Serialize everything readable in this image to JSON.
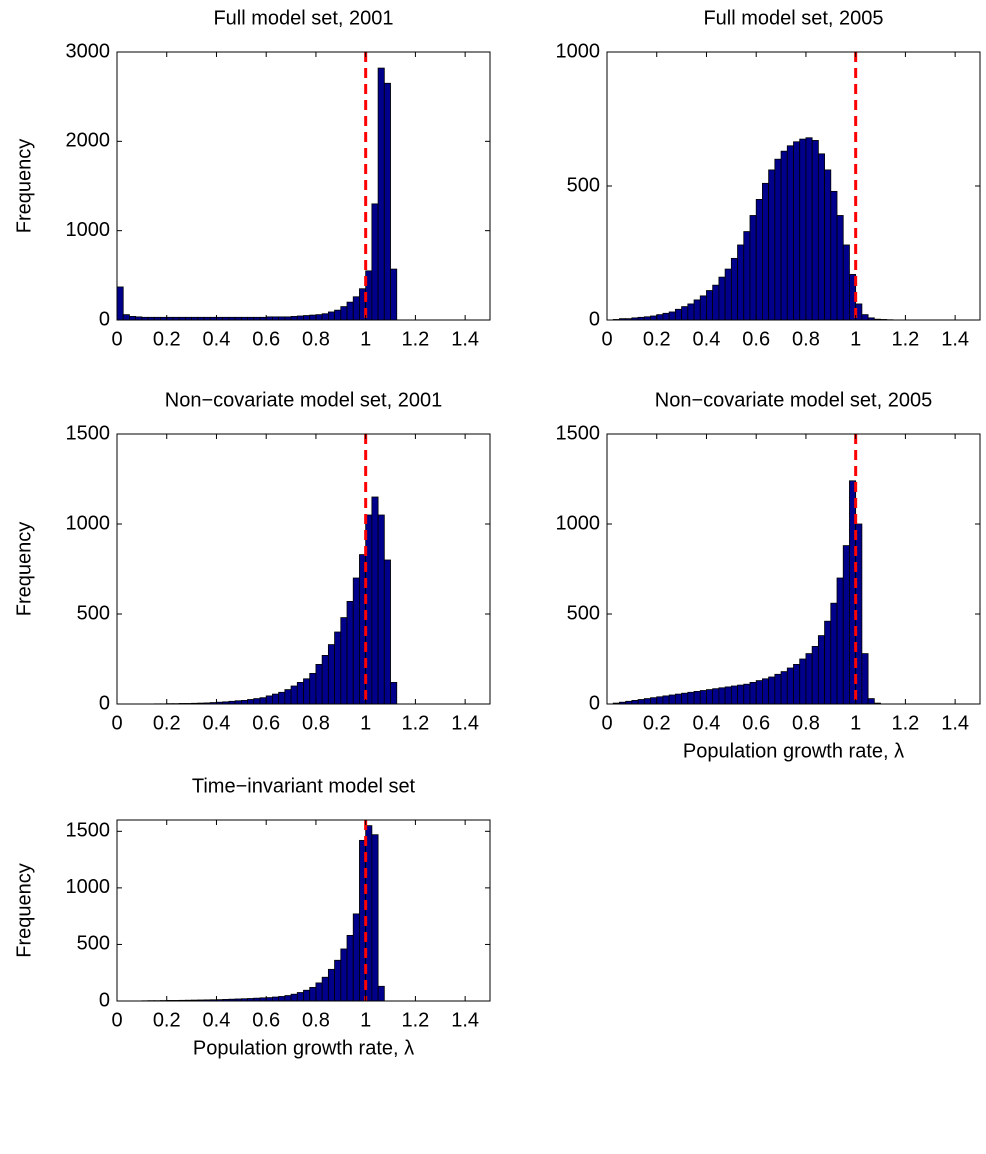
{
  "chart_data": [
    {
      "type": "histogram",
      "title": "Full model set, 2001",
      "ylabel": "Frequency",
      "bins": [
        0,
        0.025,
        0.05,
        0.075,
        0.1,
        0.125,
        0.15,
        0.175,
        0.2,
        0.225,
        0.25,
        0.275,
        0.3,
        0.325,
        0.35,
        0.375,
        0.4,
        0.425,
        0.45,
        0.475,
        0.5,
        0.525,
        0.55,
        0.575,
        0.6,
        0.625,
        0.65,
        0.675,
        0.7,
        0.725,
        0.75,
        0.775,
        0.8,
        0.825,
        0.85,
        0.875,
        0.9,
        0.925,
        0.95,
        0.975,
        1,
        1.025,
        1.05,
        1.075,
        1.1,
        1.125,
        1.15
      ],
      "counts": [
        370,
        60,
        40,
        35,
        30,
        30,
        30,
        30,
        30,
        30,
        30,
        30,
        30,
        30,
        30,
        30,
        30,
        30,
        30,
        30,
        30,
        30,
        30,
        30,
        35,
        35,
        35,
        35,
        40,
        45,
        50,
        55,
        60,
        70,
        90,
        110,
        150,
        200,
        260,
        350,
        550,
        1300,
        2820,
        2650,
        570,
        0
      ],
      "color": "#00008b",
      "xlim": [
        0,
        1.5
      ],
      "xticks": [
        0,
        0.2,
        0.4,
        0.6,
        0.8,
        1,
        1.2,
        1.4
      ],
      "ylim": [
        0,
        3000
      ],
      "yticks": [
        0,
        1000,
        2000,
        3000
      ],
      "vline": 1,
      "vline_color": "#ff0000"
    },
    {
      "type": "histogram",
      "title": "Full model set, 2005",
      "bins": [
        0,
        0.025,
        0.05,
        0.075,
        0.1,
        0.125,
        0.15,
        0.175,
        0.2,
        0.225,
        0.25,
        0.275,
        0.3,
        0.325,
        0.35,
        0.375,
        0.4,
        0.425,
        0.45,
        0.475,
        0.5,
        0.525,
        0.55,
        0.575,
        0.6,
        0.625,
        0.65,
        0.675,
        0.7,
        0.725,
        0.75,
        0.775,
        0.8,
        0.825,
        0.85,
        0.875,
        0.9,
        0.925,
        0.95,
        0.975,
        1,
        1.025,
        1.05,
        1.075,
        1.1,
        1.125,
        1.15
      ],
      "counts": [
        0,
        2,
        5,
        5,
        8,
        10,
        12,
        15,
        20,
        25,
        30,
        40,
        50,
        60,
        75,
        90,
        110,
        130,
        160,
        190,
        230,
        280,
        330,
        390,
        450,
        510,
        560,
        600,
        630,
        650,
        665,
        675,
        680,
        670,
        620,
        560,
        480,
        390,
        280,
        170,
        60,
        20,
        8,
        3,
        2,
        1
      ],
      "color": "#00008b",
      "xlim": [
        0,
        1.5
      ],
      "xticks": [
        0,
        0.2,
        0.4,
        0.6,
        0.8,
        1,
        1.2,
        1.4
      ],
      "ylim": [
        0,
        1000
      ],
      "yticks": [
        0,
        500,
        1000
      ],
      "vline": 1,
      "vline_color": "#ff0000"
    },
    {
      "type": "histogram",
      "title": "Non−covariate model set, 2001",
      "ylabel": "Frequency",
      "bins": [
        0,
        0.025,
        0.05,
        0.075,
        0.1,
        0.125,
        0.15,
        0.175,
        0.2,
        0.225,
        0.25,
        0.275,
        0.3,
        0.325,
        0.35,
        0.375,
        0.4,
        0.425,
        0.45,
        0.475,
        0.5,
        0.525,
        0.55,
        0.575,
        0.6,
        0.625,
        0.65,
        0.675,
        0.7,
        0.725,
        0.75,
        0.775,
        0.8,
        0.825,
        0.85,
        0.875,
        0.9,
        0.925,
        0.95,
        0.975,
        1,
        1.025,
        1.05,
        1.075,
        1.1,
        1.125,
        1.15
      ],
      "counts": [
        0,
        0,
        0,
        0,
        0,
        0,
        1,
        1,
        2,
        2,
        3,
        3,
        4,
        5,
        6,
        8,
        10,
        12,
        15,
        18,
        20,
        25,
        30,
        35,
        45,
        55,
        65,
        80,
        100,
        120,
        140,
        170,
        220,
        270,
        330,
        400,
        480,
        570,
        700,
        830,
        1050,
        1150,
        1050,
        800,
        120,
        0
      ],
      "color": "#00008b",
      "xlim": [
        0,
        1.5
      ],
      "xticks": [
        0,
        0.2,
        0.4,
        0.6,
        0.8,
        1,
        1.2,
        1.4
      ],
      "ylim": [
        0,
        1500
      ],
      "yticks": [
        0,
        500,
        1000,
        1500
      ],
      "vline": 1,
      "vline_color": "#ff0000"
    },
    {
      "type": "histogram",
      "title": "Non−covariate model set, 2005",
      "xlabel": "Population growth rate, λ",
      "bins": [
        0,
        0.025,
        0.05,
        0.075,
        0.1,
        0.125,
        0.15,
        0.175,
        0.2,
        0.225,
        0.25,
        0.275,
        0.3,
        0.325,
        0.35,
        0.375,
        0.4,
        0.425,
        0.45,
        0.475,
        0.5,
        0.525,
        0.55,
        0.575,
        0.6,
        0.625,
        0.65,
        0.675,
        0.7,
        0.725,
        0.75,
        0.775,
        0.8,
        0.825,
        0.85,
        0.875,
        0.9,
        0.925,
        0.95,
        0.975,
        1,
        1.025,
        1.05,
        1.075,
        1.1,
        1.125,
        1.15
      ],
      "counts": [
        0,
        5,
        10,
        15,
        20,
        25,
        30,
        35,
        40,
        45,
        50,
        55,
        60,
        65,
        70,
        75,
        80,
        85,
        90,
        95,
        100,
        105,
        110,
        120,
        130,
        140,
        150,
        165,
        180,
        200,
        220,
        250,
        280,
        320,
        380,
        460,
        560,
        700,
        880,
        1240,
        1000,
        280,
        30,
        5,
        0,
        0
      ],
      "color": "#00008b",
      "xlim": [
        0,
        1.5
      ],
      "xticks": [
        0,
        0.2,
        0.4,
        0.6,
        0.8,
        1,
        1.2,
        1.4
      ],
      "ylim": [
        0,
        1500
      ],
      "yticks": [
        0,
        500,
        1000,
        1500
      ],
      "vline": 1,
      "vline_color": "#ff0000"
    },
    {
      "type": "histogram",
      "title": "Time−invariant model set",
      "ylabel": "Frequency",
      "xlabel": "Population growth rate, λ",
      "bins": [
        0,
        0.025,
        0.05,
        0.075,
        0.1,
        0.125,
        0.15,
        0.175,
        0.2,
        0.225,
        0.25,
        0.275,
        0.3,
        0.325,
        0.35,
        0.375,
        0.4,
        0.425,
        0.45,
        0.475,
        0.5,
        0.525,
        0.55,
        0.575,
        0.6,
        0.625,
        0.65,
        0.675,
        0.7,
        0.725,
        0.75,
        0.775,
        0.8,
        0.825,
        0.85,
        0.875,
        0.9,
        0.925,
        0.95,
        0.975,
        1,
        1.025,
        1.05,
        1.075,
        1.1,
        1.125,
        1.15
      ],
      "counts": [
        0,
        0,
        0,
        0,
        2,
        3,
        3,
        4,
        5,
        5,
        6,
        7,
        8,
        9,
        10,
        11,
        12,
        14,
        16,
        18,
        20,
        22,
        25,
        28,
        30,
        35,
        40,
        48,
        60,
        75,
        95,
        120,
        160,
        210,
        280,
        360,
        460,
        580,
        770,
        1420,
        1550,
        1470,
        130,
        0,
        0,
        0
      ],
      "color": "#00008b",
      "xlim": [
        0,
        1.5
      ],
      "xticks": [
        0,
        0.2,
        0.4,
        0.6,
        0.8,
        1,
        1.2,
        1.4
      ],
      "ylim": [
        0,
        1600
      ],
      "yticks": [
        0,
        500,
        1000,
        1500
      ],
      "vline": 1,
      "vline_color": "#ff0000"
    }
  ]
}
